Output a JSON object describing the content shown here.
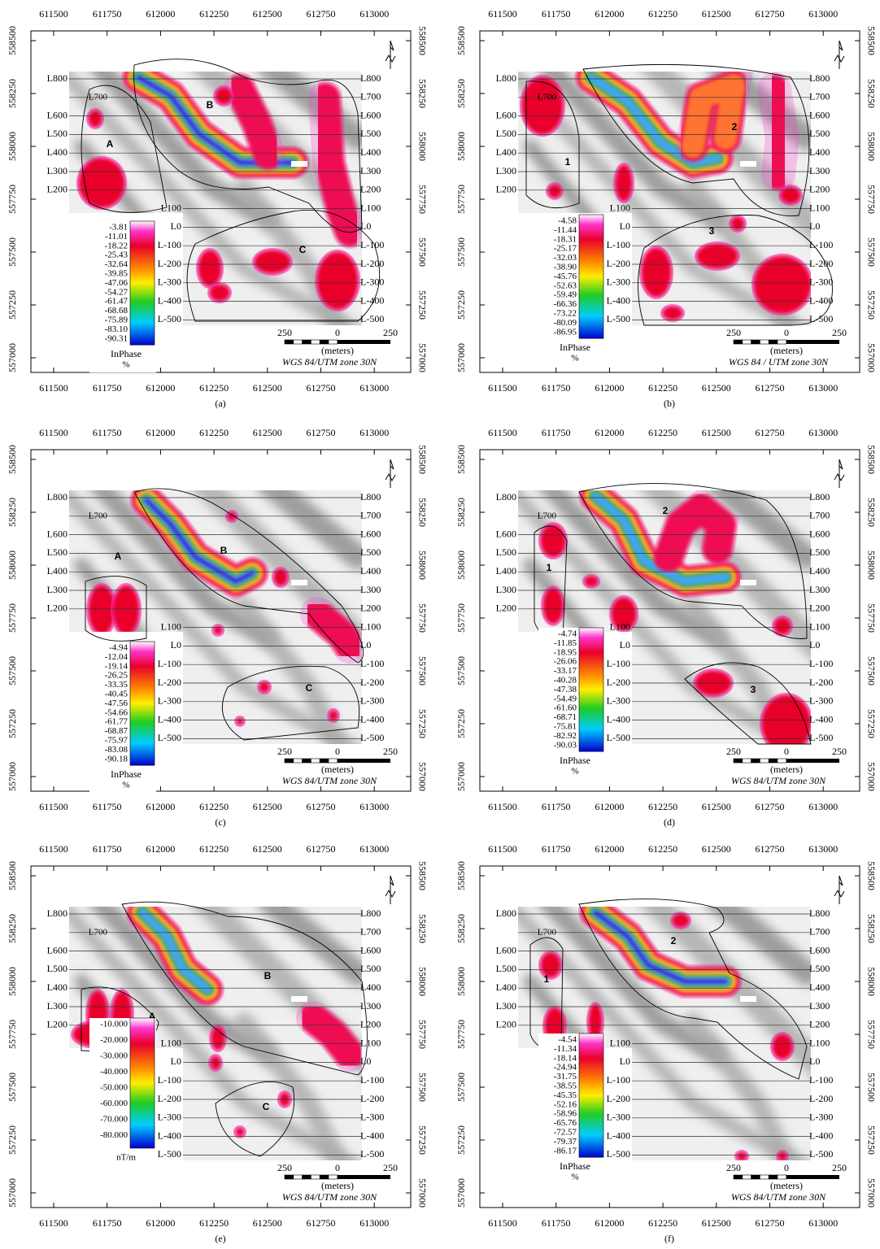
{
  "axes": {
    "x_ticks": [
      "611500",
      "611750",
      "612000",
      "612250",
      "612500",
      "612750",
      "613000"
    ],
    "y_ticks": [
      "558500",
      "558250",
      "558000",
      "557750",
      "557500",
      "557250",
      "557000"
    ]
  },
  "survey_lines": [
    "L800",
    "L700",
    "L600",
    "L500",
    "L400",
    "L300",
    "L200",
    "L100",
    "L0",
    "L-100",
    "L-200",
    "L-300",
    "L-400",
    "L-500"
  ],
  "scale_bar": {
    "left": "250",
    "center": "0",
    "right": "250",
    "unit": "(meters)"
  },
  "panels": [
    {
      "caption": "(a)",
      "projection": "WGS 84/UTM zone 30N",
      "zone_labels": [
        "A",
        "B",
        "C"
      ],
      "legend": {
        "values": [
          "-3.81",
          "-11.01",
          "-18.22",
          "-25.43",
          "-32.64",
          "-39.85",
          "-47.06",
          "-54.27",
          "-61.47",
          "-68.68",
          "-75.89",
          "-83.10",
          "-90.31"
        ],
        "title": "InPhase",
        "unit": "%"
      }
    },
    {
      "caption": "(b)",
      "projection": "WGS 84 / UTM zone 30N",
      "zone_labels": [
        "1",
        "2",
        "3"
      ],
      "legend": {
        "values": [
          "-4.58",
          "-11.44",
          "-18.31",
          "-25.17",
          "-32.03",
          "-38.90",
          "-45.76",
          "-52.63",
          "-59.49",
          "-66.36",
          "-73.22",
          "-80.09",
          "-86.95"
        ],
        "title": "InPhase",
        "unit": "%"
      }
    },
    {
      "caption": "(c)",
      "projection": "WGS 84/UTM zone 30N",
      "zone_labels": [
        "A",
        "B",
        "C"
      ],
      "legend": {
        "values": [
          "-4.94",
          "-12.04",
          "-19.14",
          "-26.25",
          "-33.35",
          "-40.45",
          "-47.56",
          "-54.66",
          "-61.77",
          "-68.87",
          "-75.97",
          "-83.08",
          "-90.18"
        ],
        "title": "InPhase",
        "unit": "%"
      }
    },
    {
      "caption": "(d)",
      "projection": "WGS 84/UTM zone 30N",
      "zone_labels": [
        "1",
        "2",
        "3"
      ],
      "legend": {
        "values": [
          "-4.74",
          "-11.85",
          "-18.95",
          "-26.06",
          "-33.17",
          "-40.28",
          "-47.38",
          "-54.49",
          "-61.60",
          "-68.71",
          "-75.81",
          "-82.92",
          "-90.03"
        ],
        "title": "InPhase",
        "unit": "%"
      }
    },
    {
      "caption": "(e)",
      "projection": "WGS 84/UTM zone 30N",
      "zone_labels": [
        "A",
        "B",
        "C"
      ],
      "legend": {
        "values": [
          "-10.000",
          "-20.000",
          "-30.000",
          "-40.000",
          "-50.000",
          "-60.000",
          "-70.000",
          "-80.000"
        ],
        "unit": "nT/m"
      }
    },
    {
      "caption": "(f)",
      "projection": "WGS 84/UTM zone 30N",
      "zone_labels": [
        "1",
        "2"
      ],
      "legend": {
        "values": [
          "-4.54",
          "-11.34",
          "-18.14",
          "-24.94",
          "-31.75",
          "-38.55",
          "-45.35",
          "-52.16",
          "-58.96",
          "-65.76",
          "-72.57",
          "-79.37",
          "-86.17"
        ],
        "title": "InPhase",
        "unit": "%"
      }
    }
  ]
}
